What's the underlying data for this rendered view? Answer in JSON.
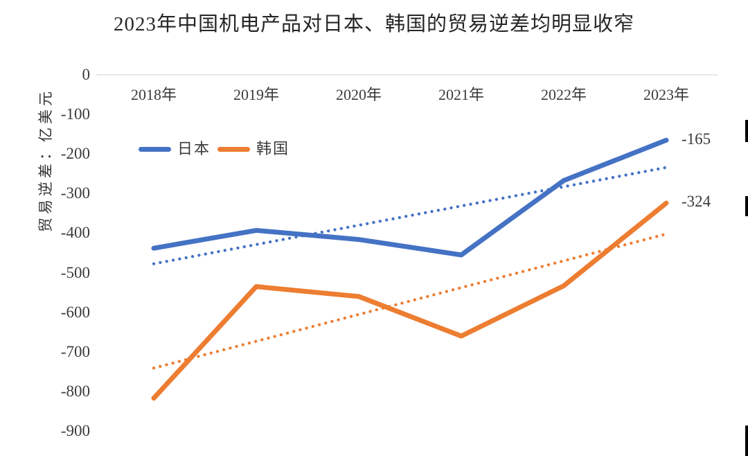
{
  "title": "2023年中国机电产品对日本、韩国的贸易逆差均明显收窄",
  "chart_data": {
    "type": "line",
    "categories": [
      "2018年",
      "2019年",
      "2020年",
      "2021年",
      "2022年",
      "2023年"
    ],
    "series": [
      {
        "name": "日本",
        "color": "#4472C4",
        "values": [
          -438,
          -393,
          -416,
          -455,
          -267,
          -165
        ],
        "trendline": "dotted-linear",
        "end_label": "-165"
      },
      {
        "name": "韩国",
        "color": "#ED7D31",
        "values": [
          -817,
          -535,
          -560,
          -660,
          -533,
          -324
        ],
        "trendline": "dotted-linear",
        "end_label": "-324"
      }
    ],
    "ylabel": "贸易逆差：亿美元",
    "yticks": [
      "0",
      "-100",
      "-200",
      "-300",
      "-400",
      "-500",
      "-600",
      "-700",
      "-800",
      "-900"
    ],
    "ylim": [
      -900,
      0
    ],
    "xlabels_position": "top-inside",
    "grid": "zero-line-only",
    "gridline_color": "#D9D9D9",
    "legend_position": "inside-top-left"
  }
}
